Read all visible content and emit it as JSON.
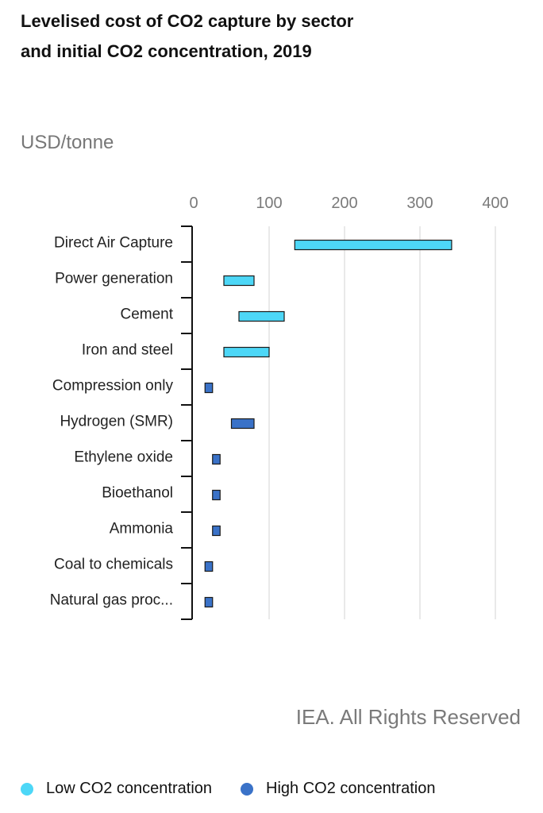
{
  "title": "Levelised cost of CO2 capture by sector and initial CO2 concentration, 2019",
  "unit_label": "USD/tonne",
  "credit": "IEA. All Rights Reserved",
  "colors": {
    "low": "#4DD7F7",
    "high": "#3A72C8",
    "grid": "#e2e2e2",
    "bar_stroke": "#1a1a1a"
  },
  "legend": [
    {
      "label": "Low CO2 concentration",
      "color": "#4DD7F7"
    },
    {
      "label": "High CO2 concentration",
      "color": "#3A72C8"
    }
  ],
  "chart_data": {
    "type": "bar",
    "orientation": "horizontal",
    "title": "Levelised cost of CO2 capture by sector and initial CO2 concentration, 2019",
    "xlabel": "",
    "ylabel": "USD/tonne",
    "xlim": [
      0,
      400
    ],
    "x_ticks": [
      0,
      100,
      200,
      300,
      400
    ],
    "grid": true,
    "legend_position": "bottom",
    "categories": [
      "Direct Air Capture",
      "Power generation",
      "Cement",
      "Iron and steel",
      "Compression only",
      "Hydrogen (SMR)",
      "Ethylene oxide",
      "Bioethanol",
      "Ammonia",
      "Coal to chemicals",
      "Natural gas proc..."
    ],
    "series": [
      {
        "name": "Low CO2 concentration",
        "ranges": [
          {
            "category": "Direct Air Capture",
            "min": 134,
            "max": 342
          },
          {
            "category": "Power generation",
            "min": 40,
            "max": 80
          },
          {
            "category": "Cement",
            "min": 60,
            "max": 120
          },
          {
            "category": "Iron and steel",
            "min": 40,
            "max": 100
          }
        ]
      },
      {
        "name": "High CO2 concentration",
        "ranges": [
          {
            "category": "Compression only",
            "min": 15,
            "max": 25
          },
          {
            "category": "Hydrogen (SMR)",
            "min": 50,
            "max": 80
          },
          {
            "category": "Ethylene oxide",
            "min": 25,
            "max": 35
          },
          {
            "category": "Bioethanol",
            "min": 25,
            "max": 35
          },
          {
            "category": "Ammonia",
            "min": 25,
            "max": 35
          },
          {
            "category": "Coal to chemicals",
            "min": 15,
            "max": 25
          },
          {
            "category": "Natural gas proc...",
            "min": 15,
            "max": 25
          }
        ]
      }
    ]
  }
}
